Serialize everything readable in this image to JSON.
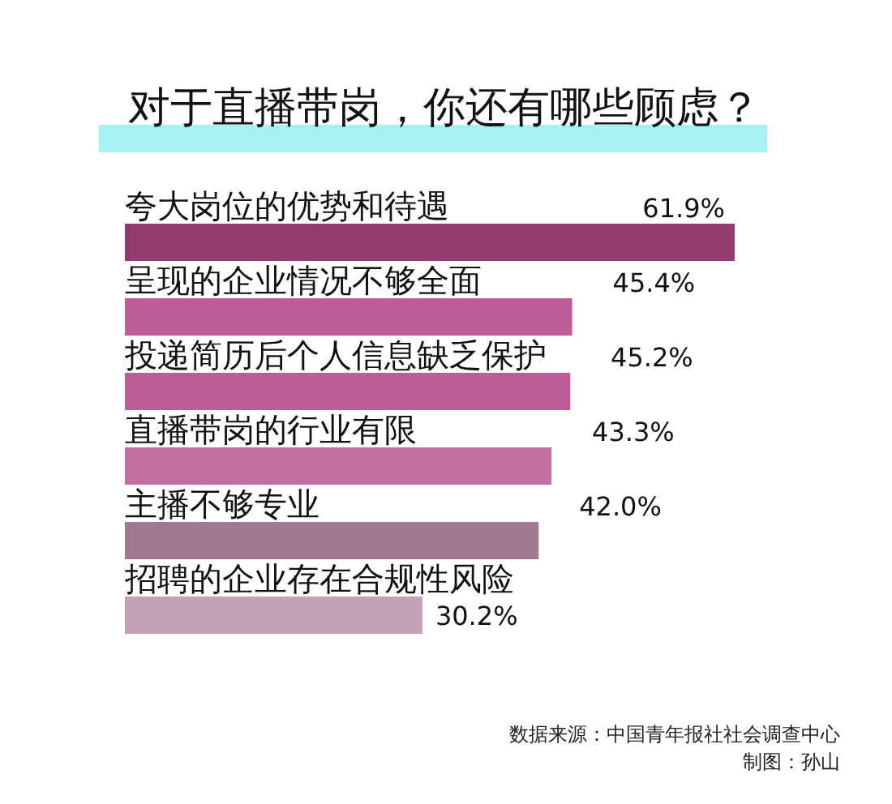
{
  "chart_data": {
    "type": "bar",
    "orientation": "horizontal",
    "title": "对于直播带岗，你还有哪些顾虑？",
    "categories": [
      "夸大岗位的优势和待遇",
      "呈现的企业情况不够全面",
      "投递简历后个人信息缺乏保护",
      "直播带岗的行业有限",
      "主播不够专业",
      "招聘的企业存在合规性风险"
    ],
    "values": [
      61.9,
      45.4,
      45.2,
      43.3,
      42.0,
      30.2
    ],
    "value_labels": [
      "61.9%",
      "45.4%",
      "45.2%",
      "43.3%",
      "42.0%",
      "30.2%"
    ],
    "colors": [
      "#943b70",
      "#ba5e95",
      "#ba5e95",
      "#c26f9f",
      "#a07890",
      "#c4a2b6"
    ],
    "annotations": [
      "数据来源：中国青年报社社会调查中心",
      "制图：孙山"
    ]
  }
}
